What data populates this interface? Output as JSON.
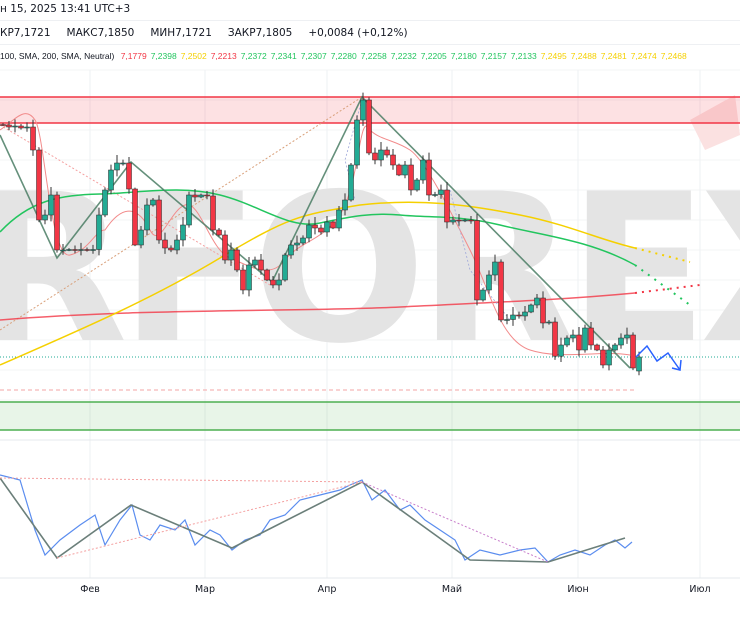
{
  "header": {
    "datetime": "н 15, 2025 13:41 UTC+3",
    "ohlc": [
      {
        "label": "КР",
        "value": "7,1721"
      },
      {
        "label": "МАКС",
        "value": "7,1850"
      },
      {
        "label": "МИН",
        "value": "7,1721"
      },
      {
        "label": "ЗАКР",
        "value": "7,1805"
      }
    ],
    "change": "+0,0084 (+0,12%)",
    "indicator_params": "100, SMA, 200, SMA, Neutral)",
    "indicator_values": [
      {
        "v": "7,1779",
        "color": "#f23645"
      },
      {
        "v": "7,2398",
        "color": "#22c55e"
      },
      {
        "v": "7,2502",
        "color": "#f5d000"
      },
      {
        "v": "7,2213",
        "color": "#f23645"
      },
      {
        "v": "7,2372",
        "color": "#22c55e"
      },
      {
        "v": "7,2341",
        "color": "#22c55e"
      },
      {
        "v": "7,2307",
        "color": "#22c55e"
      },
      {
        "v": "7,2280",
        "color": "#22c55e"
      },
      {
        "v": "7,2258",
        "color": "#22c55e"
      },
      {
        "v": "7,2232",
        "color": "#22c55e"
      },
      {
        "v": "7,2205",
        "color": "#22c55e"
      },
      {
        "v": "7,2180",
        "color": "#22c55e"
      },
      {
        "v": "7,2157",
        "color": "#22c55e"
      },
      {
        "v": "7,2133",
        "color": "#22c55e"
      },
      {
        "v": "7,2495",
        "color": "#f5d000"
      },
      {
        "v": "7,2488",
        "color": "#f5d000"
      },
      {
        "v": "7,2481",
        "color": "#f5d000"
      },
      {
        "v": "7,2474",
        "color": "#f5d000"
      },
      {
        "v": "7,2468",
        "color": "#f5d000"
      }
    ]
  },
  "time_axis": [
    "Фев",
    "Мар",
    "Апр",
    "Май",
    "Июн",
    "Июл"
  ],
  "watermark": "RFOREX",
  "colors": {
    "up": "#22ab94",
    "down": "#f23645",
    "resistance_zone": "#f23645",
    "support_zone": "#4caf50",
    "forecast": "#2962ff"
  },
  "chart_data": {
    "type": "candlestick",
    "last_open": 7.1721,
    "closes": [
      7.3197,
      7.3185,
      7.3191,
      7.3179,
      7.3185,
      7.3047,
      7.2627,
      7.2657,
      7.2777,
      7.2447,
      7.2447,
      7.245,
      7.2447,
      7.245,
      7.2447,
      7.245,
      7.2657,
      7.2807,
      7.2927,
      7.2969,
      7.2969,
      7.2813,
      7.2477,
      7.2567,
      7.2717,
      7.2747,
      7.2507,
      7.2459,
      7.2447,
      7.2507,
      7.2597,
      7.2777,
      7.2765,
      7.2777,
      7.2771,
      7.2567,
      7.2537,
      7.2387,
      7.2447,
      7.2327,
      7.2207,
      7.2357,
      7.2387,
      7.2327,
      7.2267,
      7.2237,
      7.2267,
      7.2417,
      7.2477,
      7.2489,
      7.2519,
      7.2597,
      7.2579,
      7.2555,
      7.2615,
      7.2579,
      7.2687,
      7.2747,
      7.2957,
      7.3227,
      7.3347,
      7.3029,
      7.2987,
      7.3047,
      7.3017,
      7.2957,
      7.2897,
      7.2957,
      7.2807,
      7.2867,
      7.2987,
      7.2777,
      7.278,
      7.2807,
      7.2615,
      7.2627,
      7.2621,
      7.2627,
      7.2624,
      7.2147,
      7.2207,
      7.2297,
      7.2375,
      7.2027,
      7.203,
      7.2057,
      7.2051,
      7.2075,
      7.2117,
      7.2159,
      7.2009,
      7.2015,
      7.181,
      7.1877,
      7.1919,
      7.1937,
      7.1847,
      7.1979,
      7.1877,
      7.1847,
      7.1757,
      7.1847,
      7.1877,
      7.1919,
      7.1937,
      7.1739,
      7.1805
    ]
  }
}
